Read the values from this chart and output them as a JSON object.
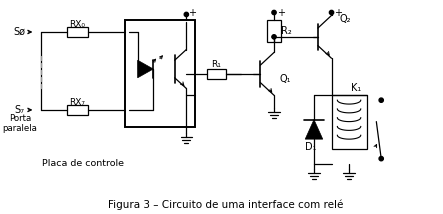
{
  "caption": "Figura 3 – Circuito de uma interface com relé",
  "bg_color": "#ffffff",
  "line_color": "#000000",
  "fig_width": 4.43,
  "fig_height": 2.14,
  "dpi": 100,
  "labels": {
    "S0": "Sø",
    "S7": "S₇",
    "porta": "Porta\nparalela",
    "placa": "Placa de controle",
    "RX0": "RX₀",
    "RX7": "RX₇",
    "R1": "R₁",
    "R2": "R₂",
    "Q1": "Q₁",
    "Q2": "Q₂",
    "D1": "D₁",
    "K1": "K₁",
    "plus": "+"
  }
}
